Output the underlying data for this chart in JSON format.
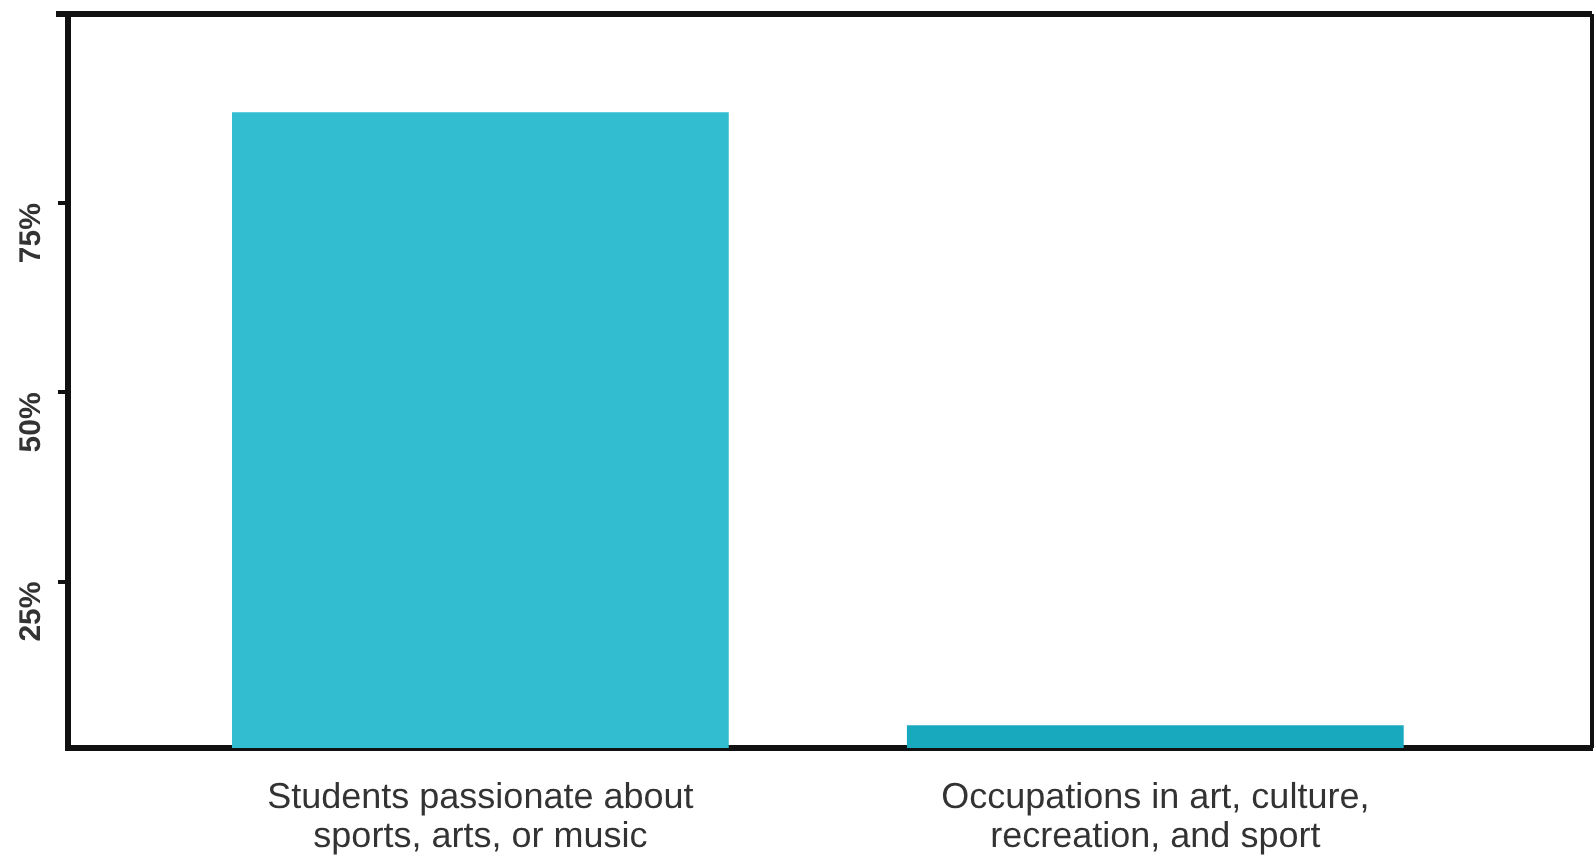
{
  "chart_data": {
    "type": "bar",
    "categories": [
      "Students passionate about sports, arts, or music",
      "Occupations in art, culture, recreation, and sport"
    ],
    "values": [
      87,
      6
    ],
    "colors": [
      "#33bdd0",
      "#18a9bf"
    ],
    "ylim": [
      3,
      100
    ],
    "yticks": [
      {
        "value": 25,
        "label": "25%"
      },
      {
        "value": 50,
        "label": "50%"
      },
      {
        "value": 75,
        "label": "75%"
      }
    ]
  }
}
